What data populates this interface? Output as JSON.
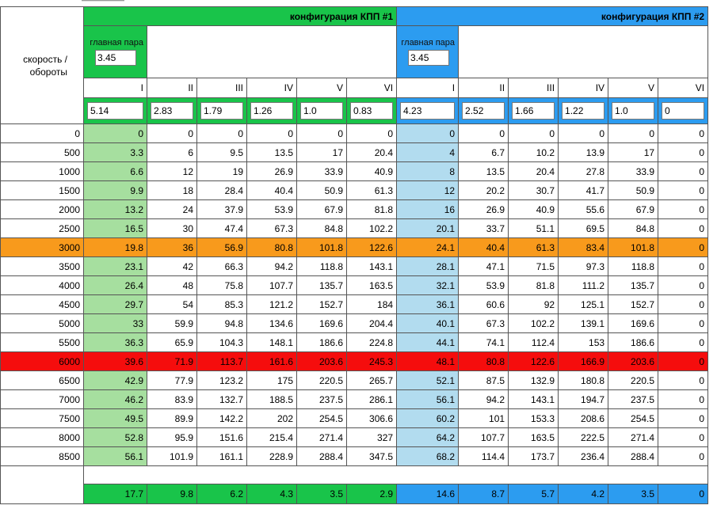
{
  "config1": {
    "title": "конфигурация КПП #1",
    "main_pair_label": "главная пара",
    "main_pair_value": "3.45",
    "gears": [
      "I",
      "II",
      "III",
      "IV",
      "V",
      "VI"
    ],
    "ratios": [
      "5.14",
      "2.83",
      "1.79",
      "1.26",
      "1.0",
      "0.83"
    ],
    "footer": [
      "17.7",
      "9.8",
      "6.2",
      "4.3",
      "3.5",
      "2.9"
    ]
  },
  "config2": {
    "title": "конфигурация КПП #2",
    "main_pair_label": "главная пара",
    "main_pair_value": "3.45",
    "gears": [
      "I",
      "II",
      "III",
      "IV",
      "V",
      "VI"
    ],
    "ratios": [
      "4.23",
      "2.52",
      "1.66",
      "1.22",
      "1.0",
      "0"
    ],
    "footer": [
      "14.6",
      "8.7",
      "5.7",
      "4.2",
      "3.5",
      "0"
    ]
  },
  "speed_label": "скорость / обороты",
  "colors": {
    "green_header": "#19c44a",
    "blue_header": "#2c9cf0",
    "light_green": "#a6df9f",
    "light_blue": "#b2dcef",
    "orange_highlight": "#f89a1c",
    "red_highlight": "#f50d0d"
  },
  "rows": [
    {
      "rpm": "0",
      "c1": [
        "0",
        "0",
        "0",
        "0",
        "0",
        "0"
      ],
      "c2": [
        "0",
        "0",
        "0",
        "0",
        "0",
        "0"
      ],
      "hl": ""
    },
    {
      "rpm": "500",
      "c1": [
        "3.3",
        "6",
        "9.5",
        "13.5",
        "17",
        "20.4"
      ],
      "c2": [
        "4",
        "6.7",
        "10.2",
        "13.9",
        "17",
        "0"
      ],
      "hl": ""
    },
    {
      "rpm": "1000",
      "c1": [
        "6.6",
        "12",
        "19",
        "26.9",
        "33.9",
        "40.9"
      ],
      "c2": [
        "8",
        "13.5",
        "20.4",
        "27.8",
        "33.9",
        "0"
      ],
      "hl": ""
    },
    {
      "rpm": "1500",
      "c1": [
        "9.9",
        "18",
        "28.4",
        "40.4",
        "50.9",
        "61.3"
      ],
      "c2": [
        "12",
        "20.2",
        "30.7",
        "41.7",
        "50.9",
        "0"
      ],
      "hl": ""
    },
    {
      "rpm": "2000",
      "c1": [
        "13.2",
        "24",
        "37.9",
        "53.9",
        "67.9",
        "81.8"
      ],
      "c2": [
        "16",
        "26.9",
        "40.9",
        "55.6",
        "67.9",
        "0"
      ],
      "hl": ""
    },
    {
      "rpm": "2500",
      "c1": [
        "16.5",
        "30",
        "47.4",
        "67.3",
        "84.8",
        "102.2"
      ],
      "c2": [
        "20.1",
        "33.7",
        "51.1",
        "69.5",
        "84.8",
        "0"
      ],
      "hl": ""
    },
    {
      "rpm": "3000",
      "c1": [
        "19.8",
        "36",
        "56.9",
        "80.8",
        "101.8",
        "122.6"
      ],
      "c2": [
        "24.1",
        "40.4",
        "61.3",
        "83.4",
        "101.8",
        "0"
      ],
      "hl": "orange"
    },
    {
      "rpm": "3500",
      "c1": [
        "23.1",
        "42",
        "66.3",
        "94.2",
        "118.8",
        "143.1"
      ],
      "c2": [
        "28.1",
        "47.1",
        "71.5",
        "97.3",
        "118.8",
        "0"
      ],
      "hl": ""
    },
    {
      "rpm": "4000",
      "c1": [
        "26.4",
        "48",
        "75.8",
        "107.7",
        "135.7",
        "163.5"
      ],
      "c2": [
        "32.1",
        "53.9",
        "81.8",
        "111.2",
        "135.7",
        "0"
      ],
      "hl": ""
    },
    {
      "rpm": "4500",
      "c1": [
        "29.7",
        "54",
        "85.3",
        "121.2",
        "152.7",
        "184"
      ],
      "c2": [
        "36.1",
        "60.6",
        "92",
        "125.1",
        "152.7",
        "0"
      ],
      "hl": ""
    },
    {
      "rpm": "5000",
      "c1": [
        "33",
        "59.9",
        "94.8",
        "134.6",
        "169.6",
        "204.4"
      ],
      "c2": [
        "40.1",
        "67.3",
        "102.2",
        "139.1",
        "169.6",
        "0"
      ],
      "hl": ""
    },
    {
      "rpm": "5500",
      "c1": [
        "36.3",
        "65.9",
        "104.3",
        "148.1",
        "186.6",
        "224.8"
      ],
      "c2": [
        "44.1",
        "74.1",
        "112.4",
        "153",
        "186.6",
        "0"
      ],
      "hl": ""
    },
    {
      "rpm": "6000",
      "c1": [
        "39.6",
        "71.9",
        "113.7",
        "161.6",
        "203.6",
        "245.3"
      ],
      "c2": [
        "48.1",
        "80.8",
        "122.6",
        "166.9",
        "203.6",
        "0"
      ],
      "hl": "red"
    },
    {
      "rpm": "6500",
      "c1": [
        "42.9",
        "77.9",
        "123.2",
        "175",
        "220.5",
        "265.7"
      ],
      "c2": [
        "52.1",
        "87.5",
        "132.9",
        "180.8",
        "220.5",
        "0"
      ],
      "hl": ""
    },
    {
      "rpm": "7000",
      "c1": [
        "46.2",
        "83.9",
        "132.7",
        "188.5",
        "237.5",
        "286.1"
      ],
      "c2": [
        "56.1",
        "94.2",
        "143.1",
        "194.7",
        "237.5",
        "0"
      ],
      "hl": ""
    },
    {
      "rpm": "7500",
      "c1": [
        "49.5",
        "89.9",
        "142.2",
        "202",
        "254.5",
        "306.6"
      ],
      "c2": [
        "60.2",
        "101",
        "153.3",
        "208.6",
        "254.5",
        "0"
      ],
      "hl": ""
    },
    {
      "rpm": "8000",
      "c1": [
        "52.8",
        "95.9",
        "151.6",
        "215.4",
        "271.4",
        "327"
      ],
      "c2": [
        "64.2",
        "107.7",
        "163.5",
        "222.5",
        "271.4",
        "0"
      ],
      "hl": ""
    },
    {
      "rpm": "8500",
      "c1": [
        "56.1",
        "101.9",
        "161.1",
        "228.9",
        "288.4",
        "347.5"
      ],
      "c2": [
        "68.2",
        "114.4",
        "173.7",
        "236.4",
        "288.4",
        "0"
      ],
      "hl": ""
    }
  ]
}
